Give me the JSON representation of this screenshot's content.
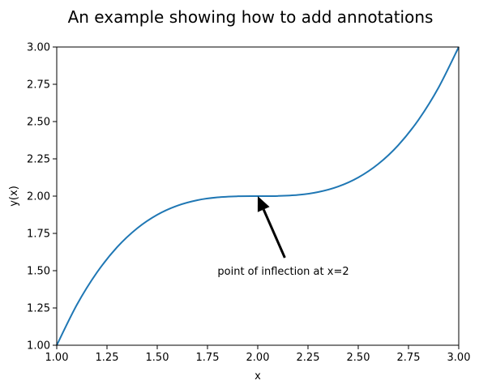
{
  "chart_data": {
    "type": "line",
    "title": "An example showing how to add annotations",
    "xlabel": "x",
    "ylabel": "y(x)",
    "xlim": [
      1.0,
      3.0
    ],
    "ylim": [
      1.0,
      3.0
    ],
    "xticks": [
      "1.00",
      "1.25",
      "1.50",
      "1.75",
      "2.00",
      "2.25",
      "2.50",
      "2.75",
      "3.00"
    ],
    "yticks": [
      "1.00",
      "1.25",
      "1.50",
      "1.75",
      "2.00",
      "2.25",
      "2.50",
      "2.75",
      "3.00"
    ],
    "grid": false,
    "legend": null,
    "series": [
      {
        "color": "#1f77b4",
        "x": [
          1.0,
          1.1,
          1.2,
          1.3,
          1.4,
          1.5,
          1.6,
          1.7,
          1.8,
          1.9,
          2.0,
          2.1,
          2.2,
          2.3,
          2.4,
          2.5,
          2.6,
          2.7,
          2.8,
          2.9,
          3.0
        ],
        "y": [
          1.0,
          1.271,
          1.488,
          1.657,
          1.784,
          1.875,
          1.936,
          1.973,
          1.992,
          1.999,
          2.0,
          2.001,
          2.008,
          2.027,
          2.064,
          2.125,
          2.216,
          2.343,
          2.512,
          2.729,
          3.0
        ]
      }
    ],
    "annotations": [
      {
        "text": "point of inflection at x=2",
        "point": [
          2.0,
          2.0
        ],
        "text_position": [
          1.8,
          1.5
        ],
        "arrow_color": "#000000"
      }
    ]
  }
}
